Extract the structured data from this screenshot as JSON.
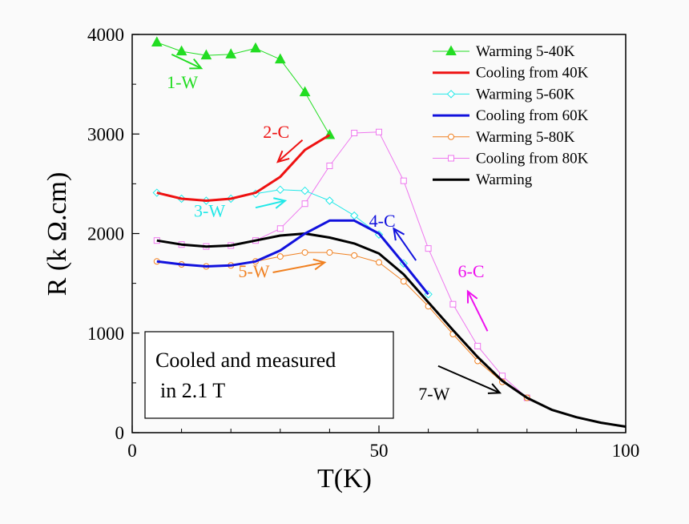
{
  "chart_data": {
    "type": "line",
    "xlabel": "T(K)",
    "ylabel": "R (k Ω.cm)",
    "xlim": [
      0,
      100
    ],
    "ylim": [
      0,
      4000
    ],
    "xticks": [
      0,
      50,
      100
    ],
    "yticks": [
      0,
      1000,
      2000,
      3000,
      4000
    ],
    "grid": false,
    "legend_position": "top-right",
    "info_box": [
      "Cooled and measured",
      "in 2.1 T"
    ],
    "series": [
      {
        "name": "Warming 5-40K",
        "color": "#22dd22",
        "marker": "triangle-filled",
        "x": [
          5,
          10,
          15,
          20,
          25,
          30,
          35,
          40
        ],
        "y": [
          3920,
          3830,
          3790,
          3800,
          3860,
          3750,
          3420,
          2990
        ]
      },
      {
        "name": "Cooling from 40K",
        "color": "#ee1111",
        "marker": "none",
        "x": [
          5,
          10,
          15,
          20,
          25,
          30,
          35,
          40
        ],
        "y": [
          2410,
          2350,
          2330,
          2350,
          2410,
          2570,
          2840,
          2990
        ]
      },
      {
        "name": "Warming 5-60K",
        "color": "#22e8e8",
        "marker": "diamond-open",
        "x": [
          5,
          10,
          15,
          20,
          25,
          30,
          35,
          40,
          45,
          50,
          55,
          60
        ],
        "y": [
          2410,
          2350,
          2330,
          2350,
          2400,
          2440,
          2430,
          2330,
          2180,
          1990,
          1700,
          1390
        ]
      },
      {
        "name": "Cooling from 60K",
        "color": "#1111dd",
        "marker": "none",
        "x": [
          5,
          10,
          15,
          20,
          25,
          30,
          35,
          40,
          45,
          50,
          55,
          60
        ],
        "y": [
          1720,
          1690,
          1670,
          1680,
          1720,
          1830,
          2000,
          2130,
          2130,
          2000,
          1700,
          1390
        ]
      },
      {
        "name": "Warming 5-80K",
        "color": "#f08020",
        "marker": "circle-open",
        "x": [
          5,
          10,
          15,
          20,
          25,
          30,
          35,
          40,
          45,
          50,
          55,
          60,
          65,
          70,
          75,
          80
        ],
        "y": [
          1720,
          1690,
          1670,
          1680,
          1720,
          1770,
          1810,
          1810,
          1780,
          1710,
          1520,
          1270,
          990,
          720,
          510,
          350
        ]
      },
      {
        "name": "Cooling from 80K",
        "color": "#ee77ee",
        "marker": "square-open",
        "x": [
          5,
          10,
          15,
          20,
          25,
          30,
          35,
          40,
          45,
          50,
          55,
          60,
          65,
          70,
          75,
          80
        ],
        "y": [
          1930,
          1890,
          1870,
          1880,
          1930,
          2050,
          2300,
          2680,
          3010,
          3020,
          2530,
          1850,
          1290,
          870,
          570,
          350
        ]
      },
      {
        "name": "Warming",
        "color": "#000000",
        "marker": "none",
        "x": [
          5,
          10,
          15,
          20,
          25,
          30,
          35,
          40,
          45,
          50,
          55,
          60,
          65,
          70,
          75,
          80,
          85,
          90,
          95,
          100
        ],
        "y": [
          1930,
          1890,
          1870,
          1880,
          1930,
          1980,
          2000,
          1960,
          1900,
          1800,
          1590,
          1310,
          1030,
          760,
          520,
          350,
          230,
          155,
          100,
          60
        ]
      }
    ],
    "annotations": [
      {
        "label": "1-W",
        "color": "#22dd22",
        "x": 7,
        "y": 3460,
        "arrow": [
          [
            8,
            3800
          ],
          [
            14,
            3660
          ]
        ]
      },
      {
        "label": "2-C",
        "color": "#ee1111",
        "x": 26.5,
        "y": 2960,
        "arrow": [
          [
            34.5,
            2940
          ],
          [
            29.5,
            2720
          ]
        ]
      },
      {
        "label": "3-W",
        "color": "#22e8e8",
        "x": 12.5,
        "y": 2170,
        "arrow": [
          [
            25,
            2260
          ],
          [
            31,
            2330
          ]
        ]
      },
      {
        "label": "4-C",
        "color": "#1111dd",
        "x": 48,
        "y": 2070,
        "arrow": [
          [
            57.5,
            1730
          ],
          [
            53,
            2050
          ]
        ]
      },
      {
        "label": "5-W",
        "color": "#f08020",
        "x": 21.5,
        "y": 1560,
        "arrow": [
          [
            28.5,
            1610
          ],
          [
            39,
            1710
          ]
        ]
      },
      {
        "label": "6-C",
        "color": "#ee11ee",
        "x": 66,
        "y": 1560,
        "arrow": [
          [
            72,
            1020
          ],
          [
            68,
            1420
          ]
        ]
      },
      {
        "label": "7-W",
        "color": "#000000",
        "x": 58,
        "y": 330,
        "arrow": [
          [
            62,
            670
          ],
          [
            74.5,
            400
          ]
        ]
      }
    ]
  }
}
